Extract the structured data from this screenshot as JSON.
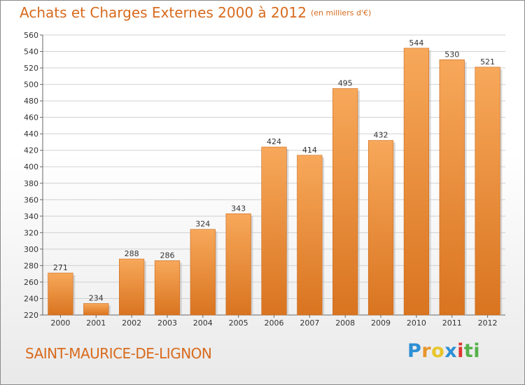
{
  "title": "Achats et Charges Externes 2000 à 2012",
  "subtitle": "(en milliers d'€)",
  "commune": "SAINT-MAURICE-DE-LIGNON",
  "logo": {
    "letters": [
      "P",
      "r",
      "o",
      "x",
      "i",
      "t",
      "i"
    ],
    "colors": [
      "#2d8fd5",
      "#e8952a",
      "#e8c52a",
      "#2d8fd5",
      "#e0342f",
      "#55b14a",
      "#55b14a"
    ]
  },
  "colors": {
    "bar_top": "#f7a85a",
    "bar_bottom": "#d97420",
    "grid": "#d0d0d0",
    "accent": "#d86a1c"
  },
  "chart_data": {
    "type": "bar",
    "title": "Achats et Charges Externes 2000 à 2012",
    "subtitle": "(en milliers d'€)",
    "categories": [
      "2000",
      "2001",
      "2002",
      "2003",
      "2004",
      "2005",
      "2006",
      "2007",
      "2008",
      "2009",
      "2010",
      "2011",
      "2012"
    ],
    "values": [
      271,
      234,
      288,
      286,
      324,
      343,
      424,
      414,
      495,
      432,
      544,
      530,
      521
    ],
    "value_labels": [
      "271",
      "234",
      "288",
      "286",
      "324",
      "343",
      "424",
      "414",
      "495",
      "432",
      "544",
      "530",
      "521"
    ],
    "ylim": [
      220,
      560
    ],
    "yticks": [
      220,
      240,
      260,
      280,
      300,
      320,
      340,
      360,
      380,
      400,
      420,
      440,
      460,
      480,
      500,
      520,
      540,
      560
    ],
    "grid": true,
    "legend": "none"
  }
}
